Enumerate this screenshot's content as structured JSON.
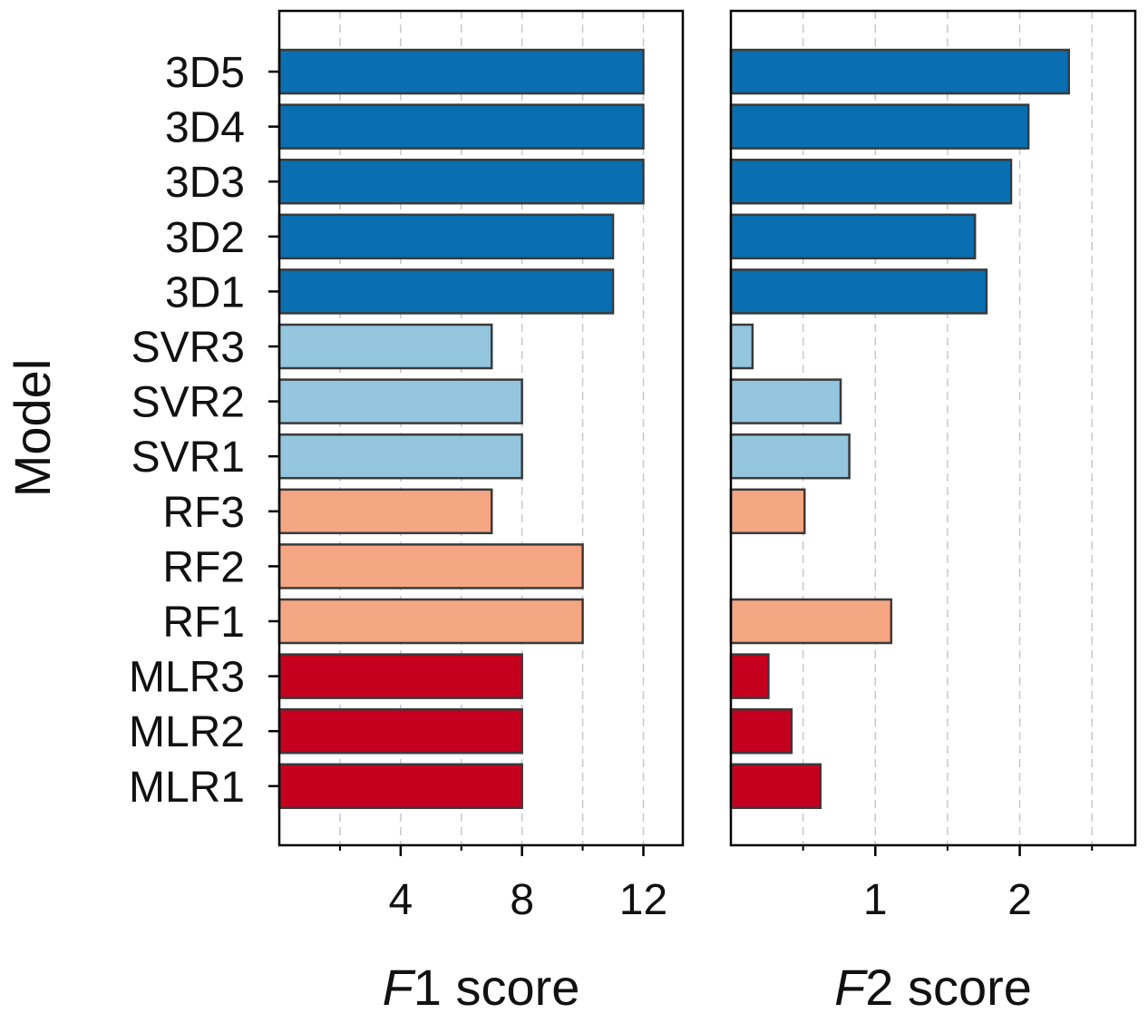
{
  "chart_data": {
    "type": "bar",
    "orientation": "horizontal",
    "ylabel": "Model",
    "categories": [
      "3D5",
      "3D4",
      "3D3",
      "3D2",
      "3D1",
      "SVR3",
      "SVR2",
      "SVR1",
      "RF3",
      "RF2",
      "RF1",
      "MLR3",
      "MLR2",
      "MLR1"
    ],
    "groups": [
      "3D",
      "3D",
      "3D",
      "3D",
      "3D",
      "SVR",
      "SVR",
      "SVR",
      "RF",
      "RF",
      "RF",
      "MLR",
      "MLR",
      "MLR"
    ],
    "group_colors": {
      "3D": "#0a6fb0",
      "SVR": "#93c5df",
      "RF": "#f4a683",
      "MLR": "#c5001f"
    },
    "edge_color": "#3a3a3a",
    "grid": "vertical dashed",
    "panels": [
      {
        "name": "f1",
        "xlabel_italic": "F",
        "xlabel_rest": "1 score",
        "xlim": [
          0,
          13.3
        ],
        "major_ticks": [
          4,
          8,
          12
        ],
        "major_tick_labels": [
          "4",
          "8",
          "12"
        ],
        "minor_ticks": [
          2,
          6,
          10
        ],
        "values": [
          12,
          12,
          12,
          11,
          11,
          7,
          8,
          8,
          7,
          10,
          10,
          8,
          8,
          8
        ]
      },
      {
        "name": "f2",
        "xlabel_italic": "F",
        "xlabel_rest": "2 score",
        "xlim": [
          0,
          2.8
        ],
        "major_ticks": [
          1,
          2
        ],
        "major_tick_labels": [
          "1",
          "2"
        ],
        "minor_ticks": [
          0.5,
          1.5,
          2.5
        ],
        "values": [
          2.34,
          2.06,
          1.94,
          1.69,
          1.77,
          0.15,
          0.76,
          0.82,
          0.51,
          null,
          1.11,
          0.26,
          0.42,
          0.62
        ]
      }
    ]
  }
}
